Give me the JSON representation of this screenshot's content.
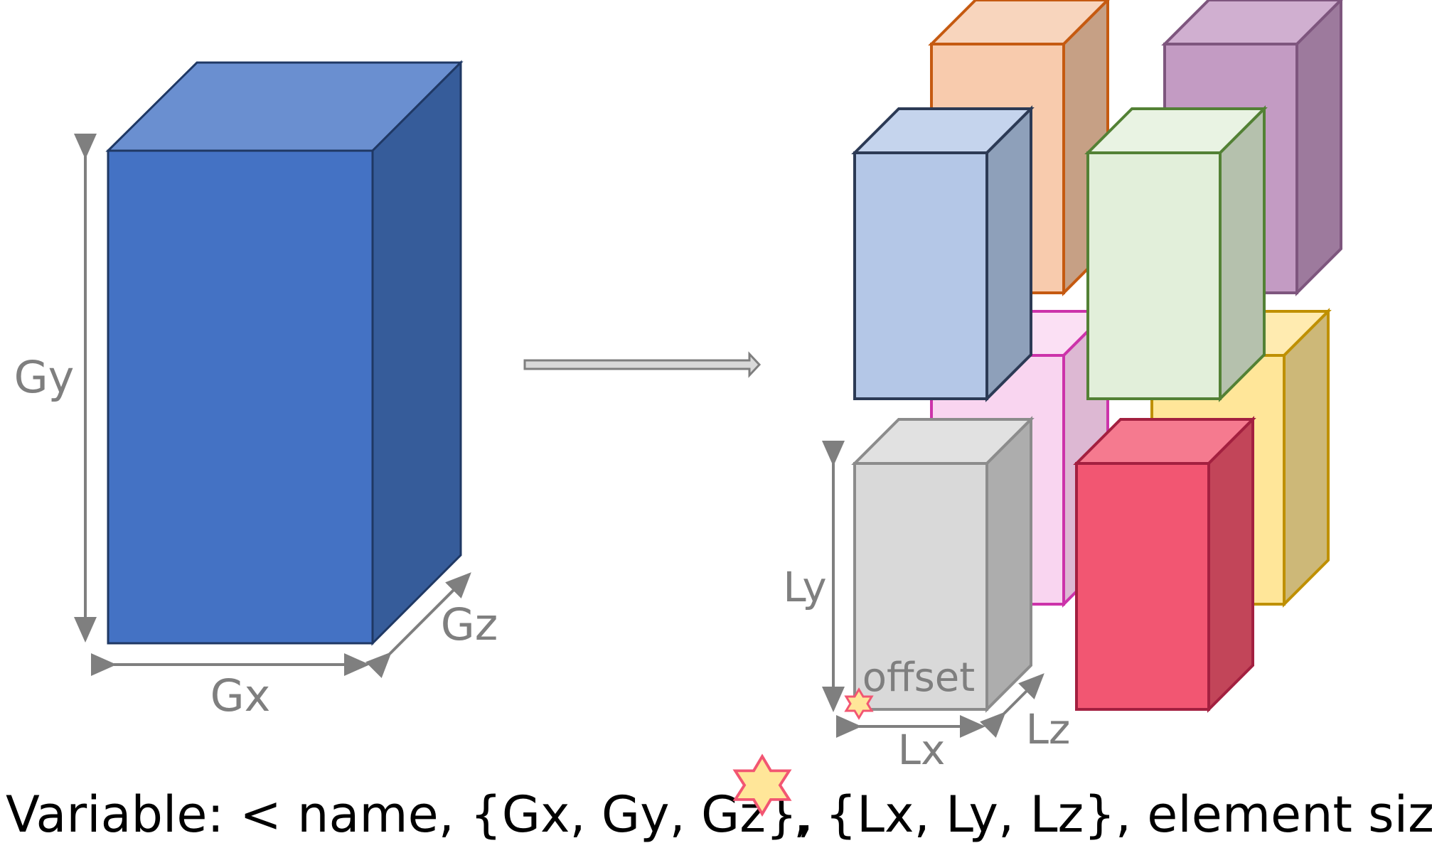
{
  "global_block": {
    "labels": {
      "gx": "Gx",
      "gy": "Gy",
      "gz": "Gz"
    },
    "colors": {
      "front": "#4472C4",
      "top": "#6A8FD0",
      "side": "#365C9A",
      "edge": "#1F3864"
    }
  },
  "local_blocks": {
    "labels": {
      "lx": "Lx",
      "ly": "Ly",
      "lz": "Lz",
      "offset": "offset"
    },
    "blocks": [
      {
        "name": "orange",
        "front": "#F8CBAD",
        "top": "#F8D5BD",
        "side": "#C6A085",
        "edge": "#C55A11"
      },
      {
        "name": "purple",
        "front": "#C39BC3",
        "top": "#D0AFD0",
        "side": "#9D7A9D",
        "edge": "#7E567E"
      },
      {
        "name": "pink",
        "front": "#F9D5F0",
        "top": "#FBE0F4",
        "side": "#DDB8D3",
        "edge": "#CC33AA"
      },
      {
        "name": "yellow",
        "front": "#FFE699",
        "top": "#FFEBB0",
        "side": "#CDB878",
        "edge": "#BF9000"
      },
      {
        "name": "blue",
        "front": "#B4C7E7",
        "top": "#C5D4ED",
        "side": "#8EA0BA",
        "edge": "#2C3A55"
      },
      {
        "name": "green",
        "front": "#E2EFDA",
        "top": "#E9F3E3",
        "side": "#B5C1AD",
        "edge": "#538135"
      },
      {
        "name": "gray",
        "front": "#D9D9D9",
        "top": "#E1E1E1",
        "side": "#ADADAD",
        "edge": "#8C8C8C"
      },
      {
        "name": "red",
        "front": "#F25672",
        "top": "#F57A8F",
        "side": "#C24559",
        "edge": "#A32040"
      }
    ]
  },
  "arrow_color": "#7F7F7F",
  "offset_marker": {
    "fill": "#FFE699",
    "stroke": "#F25672"
  },
  "caption": {
    "before": "Variable: < name, {Gx, Gy, Gz},",
    "after": ", {Lx, Ly, Lz}, element size >"
  }
}
